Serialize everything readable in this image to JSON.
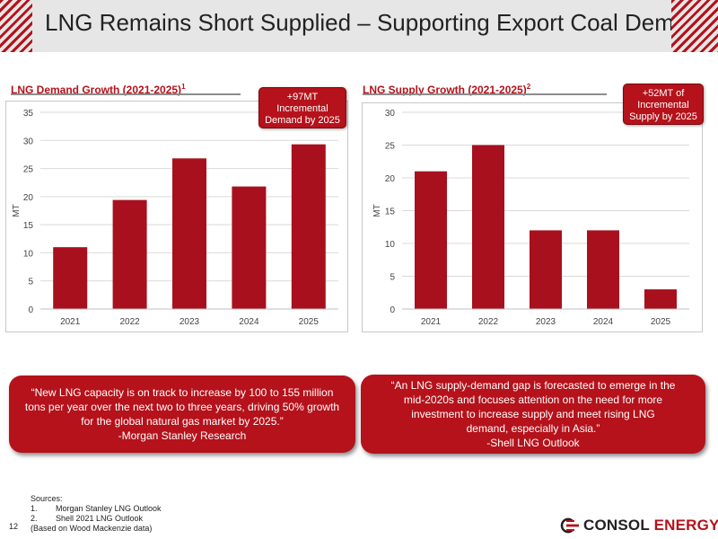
{
  "slide": {
    "title": "LNG Remains Short Supplied – Supporting Export Coal Demand",
    "page_number": "12"
  },
  "colors": {
    "accent": "#b5121b",
    "bar": "#a8101e",
    "grid": "#d9d9d9"
  },
  "demand": {
    "heading": "LNG Demand Growth (2021-2025)",
    "heading_sup": "1",
    "callout": [
      "+97MT",
      "Incremental",
      "Demand by 2025"
    ]
  },
  "supply": {
    "heading": "LNG Supply Growth (2021-2025)",
    "heading_sup": "2",
    "callout": [
      "+52MT of",
      "Incremental",
      "Supply by 2025"
    ]
  },
  "chart_data": [
    {
      "type": "bar",
      "title": "LNG Demand Growth (2021-2025)",
      "categories": [
        "2021",
        "2022",
        "2023",
        "2024",
        "2025"
      ],
      "values": [
        11,
        19.4,
        26.8,
        21.8,
        29.3
      ],
      "ylabel": "MT",
      "ylim": [
        0,
        35
      ],
      "yticks": [
        "0",
        "5",
        "10",
        "15",
        "20",
        "25",
        "30",
        "35"
      ],
      "grid": true,
      "legend": "none"
    },
    {
      "type": "bar",
      "title": "LNG Supply Growth (2021-2025)",
      "categories": [
        "2021",
        "2022",
        "2023",
        "2024",
        "2025"
      ],
      "values": [
        21,
        25,
        12,
        12,
        3
      ],
      "ylabel": "MT",
      "ylim": [
        0,
        30
      ],
      "yticks": [
        "0",
        "5",
        "10",
        "15",
        "20",
        "25",
        "30"
      ],
      "grid": true,
      "legend": "none"
    }
  ],
  "quotes": {
    "left": {
      "lines": [
        "“New LNG capacity is on track to increase by 100 to 155 million",
        "tons per year over the next two to three years, driving 50% growth",
        "for the global natural gas market by 2025.”",
        "-Morgan Stanley Research"
      ]
    },
    "right": {
      "lines": [
        "“An LNG supply-demand gap is forecasted to emerge in the",
        "mid-2020s and focuses attention on the need for more",
        "investment to increase supply and meet rising LNG",
        "demand, especially in Asia.”",
        "-Shell LNG Outlook"
      ]
    }
  },
  "sources": {
    "label": "Sources:",
    "items": [
      {
        "num": "1.",
        "text": "Morgan Stanley LNG Outlook"
      },
      {
        "num": "2.",
        "text": "Shell 2021 LNG Outlook"
      }
    ],
    "note": "(Based on Wood Mackenzie data)"
  },
  "logo": {
    "part1": "CONSOL",
    "part2": "ENERGY",
    "icon": "consol-logo-icon"
  }
}
